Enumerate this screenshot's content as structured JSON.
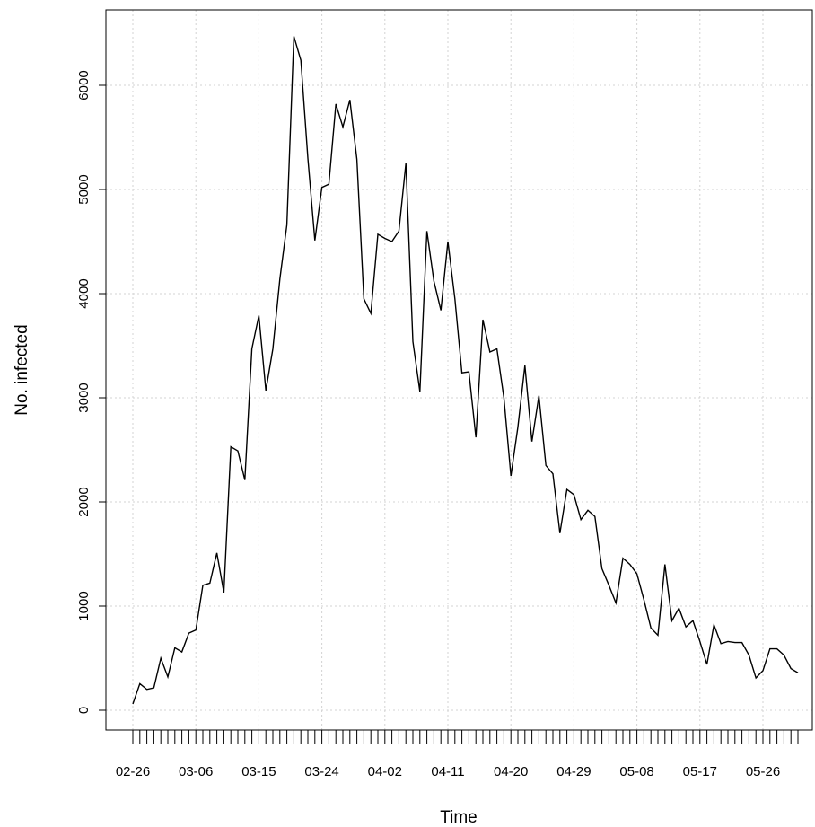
{
  "chart_data": {
    "type": "line",
    "xlabel": "Time",
    "ylabel": "No. infected",
    "ylim": [
      0,
      6800
    ],
    "y_ticks": [
      0,
      1000,
      2000,
      3000,
      4000,
      5000,
      6000
    ],
    "y_tick_labels": [
      "0",
      "1000",
      "2000",
      "3000",
      "4000",
      "5000",
      "6000"
    ],
    "x_start_date": "02-26",
    "x_tick_labels": [
      "02-26",
      "03-06",
      "03-15",
      "03-24",
      "04-02",
      "04-11",
      "04-20",
      "04-29",
      "05-08",
      "05-17",
      "05-26"
    ],
    "grid": true,
    "series": [
      {
        "values": [
          60,
          255,
          200,
          215,
          500,
          320,
          600,
          560,
          740,
          770,
          1200,
          1220,
          1510,
          1130,
          2530,
          2490,
          2210,
          3470,
          3790,
          3070,
          3470,
          4140,
          4660,
          6470,
          6240,
          5300,
          4510,
          5020,
          5050,
          5820,
          5600,
          5860,
          5290,
          3950,
          3810,
          4570,
          4530,
          4500,
          4600,
          5250,
          3540,
          3060,
          4600,
          4120,
          3840,
          4500,
          3950,
          3240,
          3250,
          2620,
          3750,
          3440,
          3470,
          3000,
          2250,
          2720,
          3310,
          2580,
          3020,
          2350,
          2270,
          1700,
          2120,
          2070,
          1830,
          1920,
          1860,
          1360,
          1200,
          1030,
          1460,
          1400,
          1310,
          1060,
          790,
          720,
          1400,
          860,
          980,
          800,
          860,
          660,
          440,
          820,
          640,
          660,
          650,
          650,
          530,
          310,
          380,
          590,
          590,
          530,
          400,
          360
        ]
      }
    ]
  }
}
